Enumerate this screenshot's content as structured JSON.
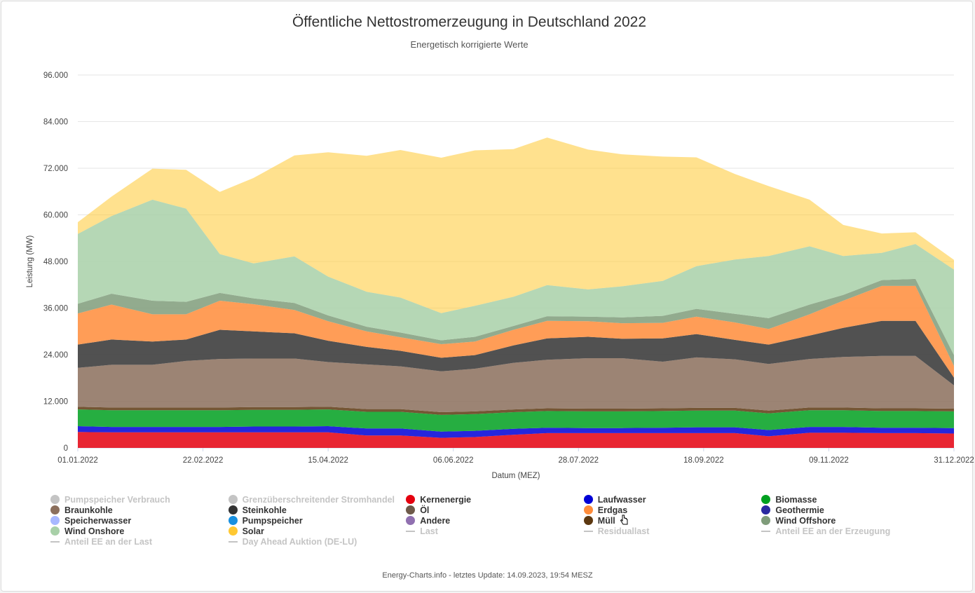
{
  "title": "Öffentliche Nettostromerzeugung in Deutschland 2022",
  "subtitle": "Energetisch korrigierte Werte",
  "footer": "Energy-Charts.info - letztes Update: 14.09.2023, 19:54 MESZ",
  "chart_data": {
    "type": "area",
    "title": "Öffentliche Nettostromerzeugung in Deutschland 2022",
    "subtitle": "Energetisch korrigierte Werte",
    "xlabel": "Datum (MEZ)",
    "ylabel": "Leistung (MW)",
    "ylim": [
      0,
      96000
    ],
    "xlim": [
      "2022-01-01",
      "2022-12-31"
    ],
    "x_ticks": [
      "01.01.2022",
      "22.02.2022",
      "15.04.2022",
      "06.06.2022",
      "28.07.2022",
      "18.09.2022",
      "09.11.2022",
      "31.12.2022"
    ],
    "y_ticks": [
      "0",
      "12.000",
      "24.000",
      "36.000",
      "48.000",
      "60.000",
      "72.000",
      "84.000",
      "96.000"
    ],
    "grid": true,
    "stacked": true,
    "legend_position": "bottom",
    "x": [
      "2022-01-01",
      "2022-01-15",
      "2022-02-01",
      "2022-02-15",
      "2022-03-01",
      "2022-03-15",
      "2022-04-01",
      "2022-04-15",
      "2022-05-01",
      "2022-05-15",
      "2022-06-01",
      "2022-06-15",
      "2022-07-01",
      "2022-07-15",
      "2022-08-01",
      "2022-08-15",
      "2022-09-01",
      "2022-09-15",
      "2022-10-01",
      "2022-10-15",
      "2022-11-01",
      "2022-11-15",
      "2022-12-01",
      "2022-12-15",
      "2022-12-31"
    ],
    "series": [
      {
        "name": "Kernenergie",
        "color": "#e4000f",
        "values": [
          4100,
          4000,
          4000,
          4000,
          4000,
          4000,
          4000,
          4000,
          3200,
          3200,
          2600,
          2800,
          3400,
          3800,
          3800,
          3800,
          3800,
          3800,
          3800,
          3000,
          3900,
          3900,
          3800,
          3800,
          3700
        ]
      },
      {
        "name": "Laufwasser",
        "color": "#0000d6",
        "values": [
          1500,
          1400,
          1400,
          1400,
          1400,
          1500,
          1500,
          1600,
          1800,
          1800,
          1600,
          1600,
          1500,
          1400,
          1300,
          1300,
          1400,
          1500,
          1500,
          1600,
          1500,
          1500,
          1400,
          1400,
          1400
        ]
      },
      {
        "name": "Biomasse",
        "color": "#00a020",
        "values": [
          4300,
          4300,
          4300,
          4300,
          4300,
          4300,
          4300,
          4300,
          4300,
          4300,
          4300,
          4300,
          4300,
          4300,
          4300,
          4300,
          4300,
          4300,
          4300,
          4300,
          4300,
          4300,
          4300,
          4300,
          4300
        ]
      },
      {
        "name": "Müll",
        "color": "#5c3810",
        "values": [
          700,
          700,
          700,
          700,
          700,
          700,
          700,
          700,
          700,
          700,
          700,
          700,
          700,
          700,
          700,
          700,
          700,
          700,
          700,
          700,
          700,
          700,
          700,
          700,
          700
        ]
      },
      {
        "name": "Braunkohle",
        "color": "#8b6f5c",
        "values": [
          10000,
          11000,
          11000,
          12000,
          12500,
          12500,
          12500,
          11500,
          11500,
          11000,
          10500,
          11000,
          12000,
          12500,
          13000,
          13000,
          12000,
          13000,
          12500,
          12000,
          12500,
          13000,
          13500,
          13500,
          6000
        ]
      },
      {
        "name": "Steinkohle",
        "color": "#333333",
        "values": [
          6000,
          6500,
          6000,
          5500,
          7500,
          7000,
          6500,
          5500,
          4500,
          4000,
          3500,
          3500,
          4500,
          5500,
          5500,
          5000,
          6000,
          6000,
          5000,
          5000,
          6000,
          7500,
          9000,
          9000,
          2000
        ]
      },
      {
        "name": "Erdgas",
        "color": "#ff8c3a",
        "values": [
          8000,
          9000,
          7000,
          6500,
          7500,
          7000,
          6000,
          5000,
          4000,
          3500,
          3500,
          3500,
          4000,
          4500,
          4000,
          4000,
          4000,
          4500,
          4500,
          4000,
          5500,
          7000,
          9000,
          9000,
          3000
        ]
      },
      {
        "name": "Wind Offshore",
        "color": "#7f9c7a",
        "values": [
          2500,
          2800,
          3500,
          3200,
          2000,
          1500,
          1800,
          1500,
          1200,
          1200,
          1000,
          1200,
          1000,
          1200,
          1200,
          1500,
          1800,
          2000,
          2200,
          2800,
          2500,
          1500,
          1500,
          1800,
          2800
        ]
      },
      {
        "name": "Wind Onshore",
        "color": "#a8d0a8",
        "values": [
          18000,
          20000,
          26000,
          24000,
          10000,
          9000,
          12000,
          10000,
          9000,
          9000,
          7000,
          8000,
          7500,
          8000,
          7000,
          8000,
          9000,
          11000,
          14000,
          16000,
          15000,
          10000,
          7000,
          9000,
          22000
        ]
      },
      {
        "name": "Solar",
        "color": "#ffc832",
        "values": [
          3000,
          5000,
          8000,
          10000,
          16000,
          22000,
          26000,
          32000,
          35000,
          38000,
          40000,
          40000,
          38000,
          38000,
          36000,
          34000,
          32000,
          28000,
          22000,
          18000,
          12000,
          8000,
          5000,
          3000,
          2500
        ]
      }
    ]
  },
  "legend": [
    {
      "label": "Pumpspeicher Verbrauch",
      "color": "#c4c4c4",
      "kind": "dot",
      "visible": false
    },
    {
      "label": "Grenzüberschreitender Stromhandel",
      "color": "#c4c4c4",
      "kind": "dot",
      "visible": false
    },
    {
      "label": "Kernenergie",
      "color": "#e4000f",
      "kind": "dot",
      "visible": true
    },
    {
      "label": "Laufwasser",
      "color": "#0000d6",
      "kind": "dot",
      "visible": true
    },
    {
      "label": "Biomasse",
      "color": "#00a020",
      "kind": "dot",
      "visible": true
    },
    {
      "label": "Braunkohle",
      "color": "#8b6f5c",
      "kind": "dot",
      "visible": true
    },
    {
      "label": "Steinkohle",
      "color": "#333333",
      "kind": "dot",
      "visible": true
    },
    {
      "label": "Öl",
      "color": "#6e5a4a",
      "kind": "dot",
      "visible": true
    },
    {
      "label": "Erdgas",
      "color": "#ff8c3a",
      "kind": "dot",
      "visible": true
    },
    {
      "label": "Geothermie",
      "color": "#2a2aa0",
      "kind": "dot",
      "visible": true
    },
    {
      "label": "Speicherwasser",
      "color": "#a8b8ff",
      "kind": "dot",
      "visible": true
    },
    {
      "label": "Pumpspeicher",
      "color": "#1890e0",
      "kind": "dot",
      "visible": true
    },
    {
      "label": "Andere",
      "color": "#9070b0",
      "kind": "dot",
      "visible": true
    },
    {
      "label": "Müll",
      "color": "#5c3810",
      "kind": "dot",
      "visible": true
    },
    {
      "label": "Wind Offshore",
      "color": "#7f9c7a",
      "kind": "dot",
      "visible": true
    },
    {
      "label": "Wind Onshore",
      "color": "#a8d0a8",
      "kind": "dot",
      "visible": true
    },
    {
      "label": "Solar",
      "color": "#ffc832",
      "kind": "dot",
      "visible": true
    },
    {
      "label": "Last",
      "color": "#c4c4c4",
      "kind": "line",
      "visible": false
    },
    {
      "label": "Residuallast",
      "color": "#c4c4c4",
      "kind": "line",
      "visible": false
    },
    {
      "label": "Anteil EE an der Erzeugung",
      "color": "#c4c4c4",
      "kind": "line",
      "visible": false
    },
    {
      "label": "Anteil EE an der Last",
      "color": "#c4c4c4",
      "kind": "line",
      "visible": false
    },
    {
      "label": "Day Ahead Auktion (DE-LU)",
      "color": "#c4c4c4",
      "kind": "line",
      "visible": false
    }
  ]
}
